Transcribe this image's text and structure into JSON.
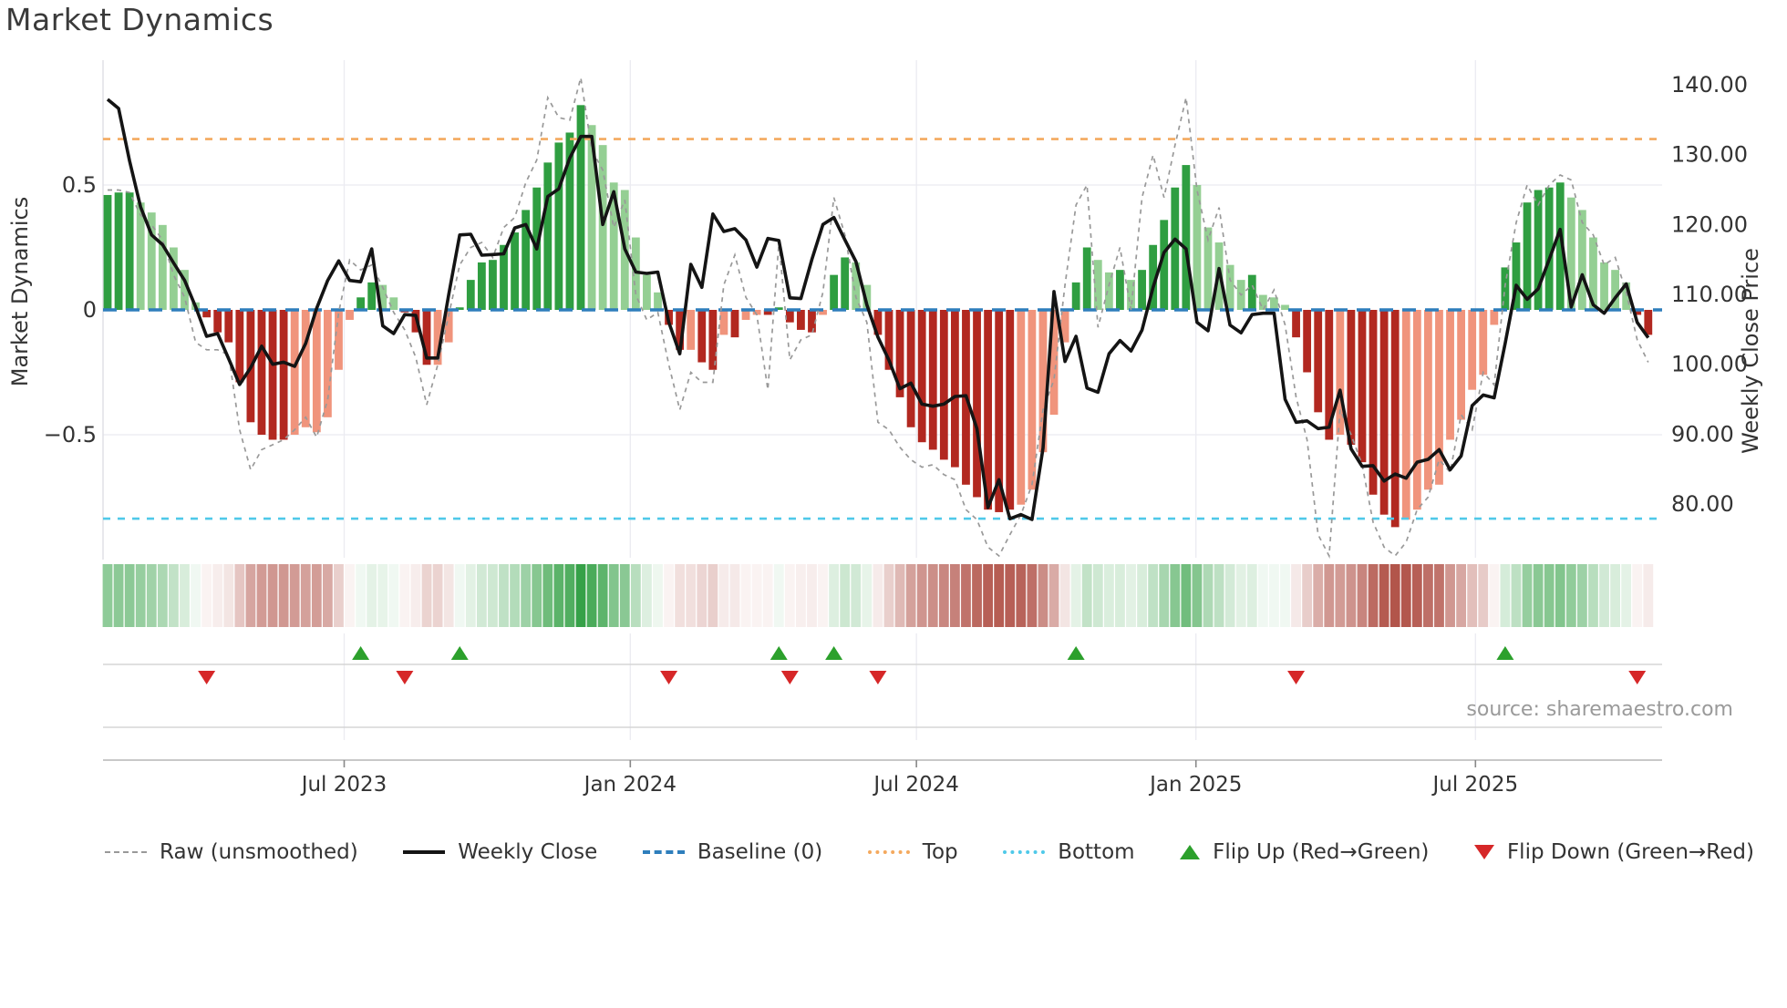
{
  "title": "Market Dynamics",
  "source": "source: sharemaestro.com",
  "axes": {
    "left": {
      "label": "Market Dynamics",
      "ticks": [
        {
          "v": 0.5,
          "t": "0.5"
        },
        {
          "v": 0.0,
          "t": "0"
        },
        {
          "v": -0.5,
          "t": "−0.5"
        }
      ]
    },
    "right": {
      "label": "Weekly Close Price",
      "ticks": [
        {
          "p": 140,
          "t": "140.00"
        },
        {
          "p": 130,
          "t": "130.00"
        },
        {
          "p": 120,
          "t": "120.00"
        },
        {
          "p": 110,
          "t": "110.00"
        },
        {
          "p": 100,
          "t": "100.00"
        },
        {
          "p": 90,
          "t": "90.00"
        },
        {
          "p": 80,
          "t": "80.00"
        }
      ]
    },
    "x": {
      "ticks": [
        {
          "i": 21.5,
          "t": "Jul 2023"
        },
        {
          "i": 47.5,
          "t": "Jan 2024"
        },
        {
          "i": 73.5,
          "t": "Jul 2024"
        },
        {
          "i": 98.9,
          "t": "Jan 2025"
        },
        {
          "i": 124.3,
          "t": "Jul 2025"
        }
      ]
    }
  },
  "legend": {
    "items": [
      {
        "label": "Raw (unsmoothed)",
        "swatch": "raw"
      },
      {
        "label": "Weekly Close",
        "swatch": "close"
      },
      {
        "label": "Baseline (0)",
        "swatch": "base"
      },
      {
        "label": "Top",
        "swatch": "top"
      },
      {
        "label": "Bottom",
        "swatch": "bottom"
      },
      {
        "label": "Flip Up (Red→Green)",
        "swatch": "tri-up"
      },
      {
        "label": "Flip Down (Green→Red)",
        "swatch": "tri-down"
      }
    ]
  },
  "colors": {
    "bar_strong_green": "#2f9e41",
    "bar_faded_green": "#94cf93",
    "bar_strong_red": "#b22820",
    "bar_faded_red": "#f0947c",
    "raw_line": "#999999",
    "close_line": "#141414",
    "baseline": "#2e7ebc",
    "top_line": "#f4a95e",
    "bottom_line": "#4fc9e9",
    "flip_up": "#2ca02c",
    "flip_down": "#d62728",
    "grid": "#ebebf1",
    "panel_line": "#d5d5d5",
    "axis_line": "#c8c8c8",
    "tick_text": "#333333",
    "heat_green": "#2f9e41",
    "heat_red": "#b2554b"
  },
  "chart_data": {
    "type": "composite-weekly",
    "n": 141,
    "baseline_value": 0,
    "top_value": 0.684,
    "bottom_value": -0.836,
    "left_ylim": [
      -1.0,
      1.0
    ],
    "right_ylim": [
      72.1,
      143.5
    ],
    "oscillator": [
      0.46,
      0.47,
      0.47,
      0.43,
      0.39,
      0.34,
      0.25,
      0.16,
      0.03,
      -0.03,
      -0.09,
      -0.13,
      -0.29,
      -0.45,
      -0.5,
      -0.52,
      -0.52,
      -0.5,
      -0.47,
      -0.49,
      -0.43,
      -0.24,
      -0.04,
      0.05,
      0.11,
      0.1,
      0.05,
      -0.01,
      -0.09,
      -0.22,
      -0.22,
      -0.13,
      0.01,
      0.12,
      0.19,
      0.2,
      0.26,
      0.31,
      0.4,
      0.49,
      0.59,
      0.67,
      0.71,
      0.82,
      0.74,
      0.66,
      0.51,
      0.48,
      0.29,
      0.14,
      0.07,
      -0.06,
      -0.16,
      -0.16,
      -0.21,
      -0.24,
      -0.1,
      -0.11,
      -0.04,
      -0.02,
      -0.02,
      0.01,
      -0.05,
      -0.08,
      -0.09,
      -0.02,
      0.14,
      0.21,
      0.19,
      0.1,
      -0.1,
      -0.24,
      -0.35,
      -0.47,
      -0.53,
      -0.56,
      -0.6,
      -0.63,
      -0.7,
      -0.75,
      -0.8,
      -0.81,
      -0.8,
      -0.78,
      -0.72,
      -0.57,
      -0.42,
      -0.13,
      0.11,
      0.25,
      0.2,
      0.15,
      0.16,
      0.12,
      0.16,
      0.26,
      0.36,
      0.49,
      0.58,
      0.5,
      0.33,
      0.27,
      0.18,
      0.12,
      0.14,
      0.06,
      0.05,
      0.02,
      -0.11,
      -0.25,
      -0.41,
      -0.52,
      -0.5,
      -0.54,
      -0.61,
      -0.74,
      -0.82,
      -0.87,
      -0.84,
      -0.8,
      -0.72,
      -0.7,
      -0.52,
      -0.44,
      -0.32,
      -0.26,
      -0.06,
      0.17,
      0.27,
      0.43,
      0.48,
      0.49,
      0.51,
      0.45,
      0.4,
      0.29,
      0.19,
      0.16,
      0.11,
      -0.02,
      -0.1
    ],
    "oscillator_strong": "111000000111111110000001100111001111111111110000000110110100111110110011111111111110000011001011111000001000111101111100000000011111100000011",
    "raw": [
      0.48,
      0.48,
      0.47,
      0.38,
      0.34,
      0.28,
      0.14,
      0.05,
      -0.13,
      -0.16,
      -0.16,
      -0.18,
      -0.48,
      -0.64,
      -0.56,
      -0.54,
      -0.52,
      -0.48,
      -0.43,
      -0.51,
      -0.36,
      -0.01,
      0.2,
      0.16,
      0.18,
      0.09,
      -0.01,
      -0.08,
      -0.19,
      -0.38,
      -0.22,
      -0.02,
      0.18,
      0.25,
      0.27,
      0.21,
      0.33,
      0.37,
      0.51,
      0.6,
      0.85,
      0.77,
      0.76,
      0.93,
      0.64,
      0.56,
      0.33,
      0.44,
      0.06,
      -0.04,
      -0.01,
      -0.22,
      -0.4,
      -0.25,
      -0.29,
      -0.29,
      0.1,
      0.22,
      0.05,
      -0.02,
      -0.32,
      0.27,
      -0.2,
      -0.12,
      -0.1,
      0.07,
      0.45,
      0.3,
      0.05,
      -0.05,
      -0.45,
      -0.48,
      -0.55,
      -0.6,
      -0.63,
      -0.62,
      -0.66,
      -0.68,
      -0.8,
      -0.84,
      -0.95,
      -1.0,
      -0.9,
      -0.82,
      -0.7,
      -0.4,
      -0.28,
      0.1,
      0.42,
      0.5,
      -0.07,
      0.1,
      0.25,
      0.0,
      0.45,
      0.62,
      0.45,
      0.66,
      0.85,
      0.48,
      0.28,
      0.41,
      0.12,
      0.06,
      0.1,
      0.0,
      0.08,
      -0.06,
      -0.35,
      -0.52,
      -0.9,
      -1.0,
      -0.4,
      -0.5,
      -0.62,
      -0.85,
      -0.95,
      -1.0,
      -0.93,
      -0.8,
      -0.75,
      -0.6,
      -0.65,
      -0.42,
      -0.48,
      -0.25,
      -0.3,
      0.1,
      0.35,
      0.5,
      0.42,
      0.5,
      0.54,
      0.52,
      0.35,
      0.3,
      0.18,
      0.21,
      0.07,
      -0.12,
      -0.21
    ],
    "weekly_close": [
      137.9,
      136.6,
      129.1,
      122.5,
      118.5,
      117.1,
      114.5,
      112.0,
      108.2,
      104.0,
      104.4,
      100.8,
      97.1,
      99.5,
      102.6,
      100.0,
      100.3,
      99.7,
      103.0,
      108.0,
      112.0,
      114.8,
      112.0,
      111.8,
      116.5,
      105.5,
      104.4,
      107.1,
      107.0,
      100.9,
      100.9,
      110.0,
      118.5,
      118.6,
      115.6,
      115.7,
      115.8,
      119.5,
      120.0,
      116.5,
      124.0,
      125.1,
      129.5,
      132.6,
      132.6,
      120.0,
      124.7,
      116.5,
      113.2,
      113.0,
      113.2,
      106.0,
      101.5,
      114.3,
      111.0,
      121.5,
      119.0,
      119.4,
      117.8,
      113.9,
      118.0,
      117.7,
      109.5,
      109.4,
      115.0,
      120.0,
      121.0,
      117.8,
      114.7,
      108.5,
      103.9,
      100.6,
      96.5,
      97.3,
      94.3,
      94.0,
      94.3,
      95.4,
      95.5,
      90.8,
      79.5,
      83.5,
      77.9,
      78.5,
      77.8,
      88.0,
      110.4,
      100.4,
      104.0,
      96.6,
      96.0,
      101.5,
      103.4,
      101.9,
      104.9,
      111.0,
      116.0,
      117.9,
      116.5,
      106.0,
      104.8,
      113.7,
      105.6,
      104.5,
      107.1,
      107.3,
      107.3,
      95.0,
      91.7,
      91.9,
      90.8,
      91.0,
      96.3,
      87.9,
      85.4,
      85.5,
      83.3,
      84.3,
      83.7,
      86.0,
      86.4,
      87.8,
      84.9,
      86.9,
      94.1,
      95.6,
      95.2,
      103.0,
      111.3,
      109.3,
      110.8,
      115.0,
      119.3,
      108.2,
      112.8,
      108.5,
      107.3,
      109.5,
      111.5,
      106.0,
      103.8
    ],
    "flip_up_indices": [
      23,
      32,
      61,
      66,
      88,
      127
    ],
    "flip_down_indices": [
      9,
      27,
      51,
      62,
      70,
      108,
      139
    ]
  }
}
